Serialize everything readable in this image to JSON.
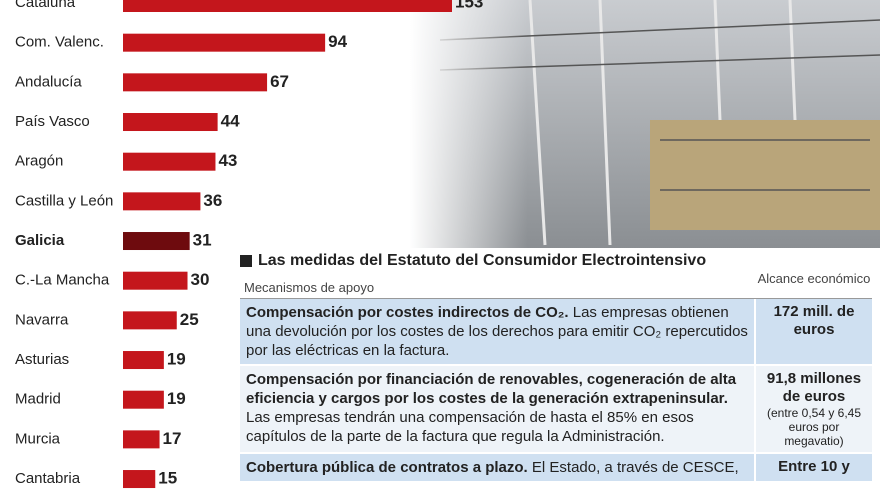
{
  "chart_data": {
    "type": "bar",
    "orientation": "horizontal",
    "categories": [
      "Cataluña",
      "Com. Valenc.",
      "Andalucía",
      "País Vasco",
      "Aragón",
      "Castilla y León",
      "Galicia",
      "C.-La Mancha",
      "Navarra",
      "Asturias",
      "Madrid",
      "Murcia",
      "Cantabria"
    ],
    "values": [
      153,
      94,
      67,
      44,
      43,
      36,
      31,
      30,
      25,
      19,
      19,
      17,
      15
    ],
    "color": "#c4161c",
    "highlight_index": 6,
    "highlight_color": "#6e0b0e",
    "xlim": [
      0,
      153
    ]
  },
  "table": {
    "title": "Las medidas del Estatuto del Consumidor Electrointensivo",
    "header": [
      "Mecanismos de apoyo",
      "Alcance económico"
    ],
    "rows": [
      {
        "lead": "Compensación por costes indirectos de CO₂.",
        "text": "Las empresas obtienen una devolución por los costes de los derechos para emitir CO₂ repercutidos por las eléctricas en la factura.",
        "amount": "172 mill. de euros",
        "note": null
      },
      {
        "lead": "Compensación por financiación de renovables, cogeneración de alta eficiencia y cargos por los costes de la generación extrapeninsular.",
        "text": "Las empresas tendrán una compensación de hasta el 85% en esos capítulos de la parte de la factura que regula la Administración.",
        "amount": "91,8 millones de euros",
        "note": "(entre 0,54 y 6,45 euros por megavatio)"
      },
      {
        "lead": "Cobertura pública de contratos a plazo.",
        "text": "El Estado, a través de CESCE,",
        "amount": "Entre 10 y",
        "note": null
      }
    ]
  }
}
